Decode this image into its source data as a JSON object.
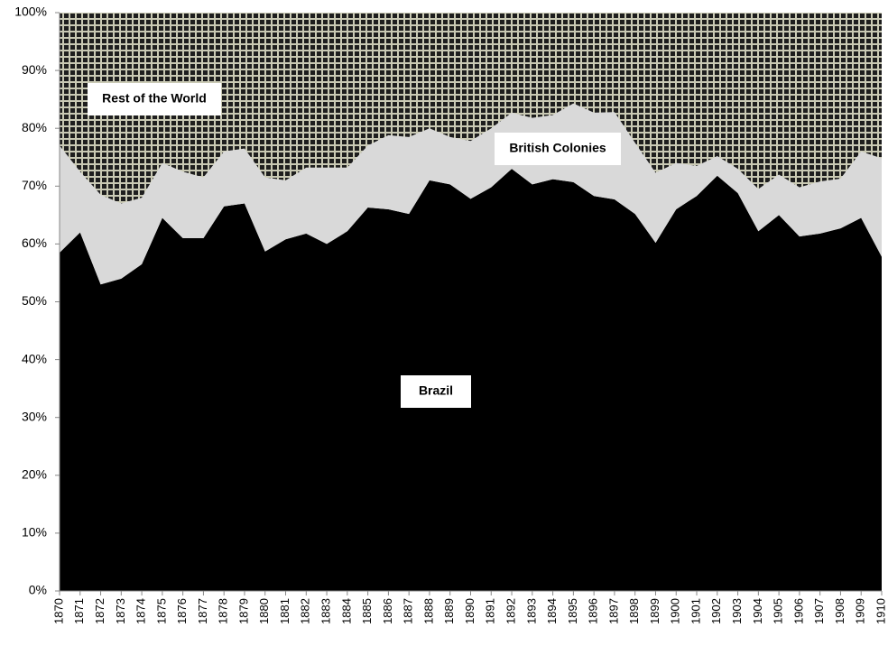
{
  "chart_data": {
    "type": "stacked_area",
    "categories": [
      "1870",
      "1871",
      "1872",
      "1873",
      "1874",
      "1875",
      "1876",
      "1877",
      "1878",
      "1879",
      "1880",
      "1881",
      "1882",
      "1883",
      "1884",
      "1885",
      "1886",
      "1887",
      "1888",
      "1889",
      "1890",
      "1891",
      "1892",
      "1893",
      "1894",
      "1895",
      "1896",
      "1897",
      "1898",
      "1899",
      "1900",
      "1901",
      "1902",
      "1903",
      "1904",
      "1905",
      "1906",
      "1907",
      "1908",
      "1909",
      "1910"
    ],
    "series": [
      {
        "name": "Brazil",
        "color": "#000000",
        "values": [
          58.5,
          62,
          53,
          54,
          56.5,
          64.5,
          61,
          61,
          66.5,
          67,
          58.7,
          60.8,
          61.8,
          60,
          62.2,
          66.3,
          66,
          65.2,
          71,
          70.3,
          67.8,
          69.8,
          73,
          70.3,
          71.2,
          70.7,
          68.3,
          67.7,
          65.2,
          60.2,
          66,
          68.3,
          71.8,
          68.8,
          62.2,
          65,
          61.3,
          61.8,
          62.7,
          64.5,
          57.8
        ]
      },
      {
        "name": "British Colonies",
        "color": "#d9d9d9",
        "values": [
          18.5,
          10.5,
          15.5,
          13,
          11.5,
          9.5,
          11.5,
          10.5,
          9.5,
          9.5,
          12.8,
          10.2,
          11.4,
          13.2,
          11,
          10.7,
          12.8,
          13.3,
          9,
          8.2,
          10,
          10.2,
          9.7,
          11.5,
          11.1,
          13.6,
          14.4,
          15.1,
          12.3,
          12.1,
          8,
          5.2,
          3.4,
          4.2,
          7.3,
          7,
          8.5,
          9,
          8.6,
          11.5,
          17
        ]
      },
      {
        "name": "Rest of the World",
        "color": "pattern",
        "values": [
          23,
          27.5,
          31.5,
          33,
          32,
          26,
          27.5,
          28.5,
          24,
          23.5,
          28.5,
          29,
          26.8,
          26.8,
          26.8,
          23,
          21.2,
          21.5,
          20,
          21.5,
          22.2,
          20,
          17.3,
          18.2,
          17.7,
          15.7,
          17.3,
          17.2,
          22.5,
          27.7,
          26,
          26.5,
          24.8,
          27,
          30.5,
          28,
          30.2,
          29.2,
          28.7,
          24,
          25.2
        ]
      }
    ],
    "ylim": [
      0,
      100
    ],
    "yticks": [
      {
        "value": 0,
        "label": "0%"
      },
      {
        "value": 10,
        "label": "10%"
      },
      {
        "value": 20,
        "label": "20%"
      },
      {
        "value": 30,
        "label": "30%"
      },
      {
        "value": 40,
        "label": "40%"
      },
      {
        "value": 50,
        "label": "50%"
      },
      {
        "value": 60,
        "label": "60%"
      },
      {
        "value": 70,
        "label": "70%"
      },
      {
        "value": 80,
        "label": "80%"
      },
      {
        "value": 90,
        "label": "90%"
      },
      {
        "value": 100,
        "label": "100%"
      }
    ],
    "grid": false
  }
}
